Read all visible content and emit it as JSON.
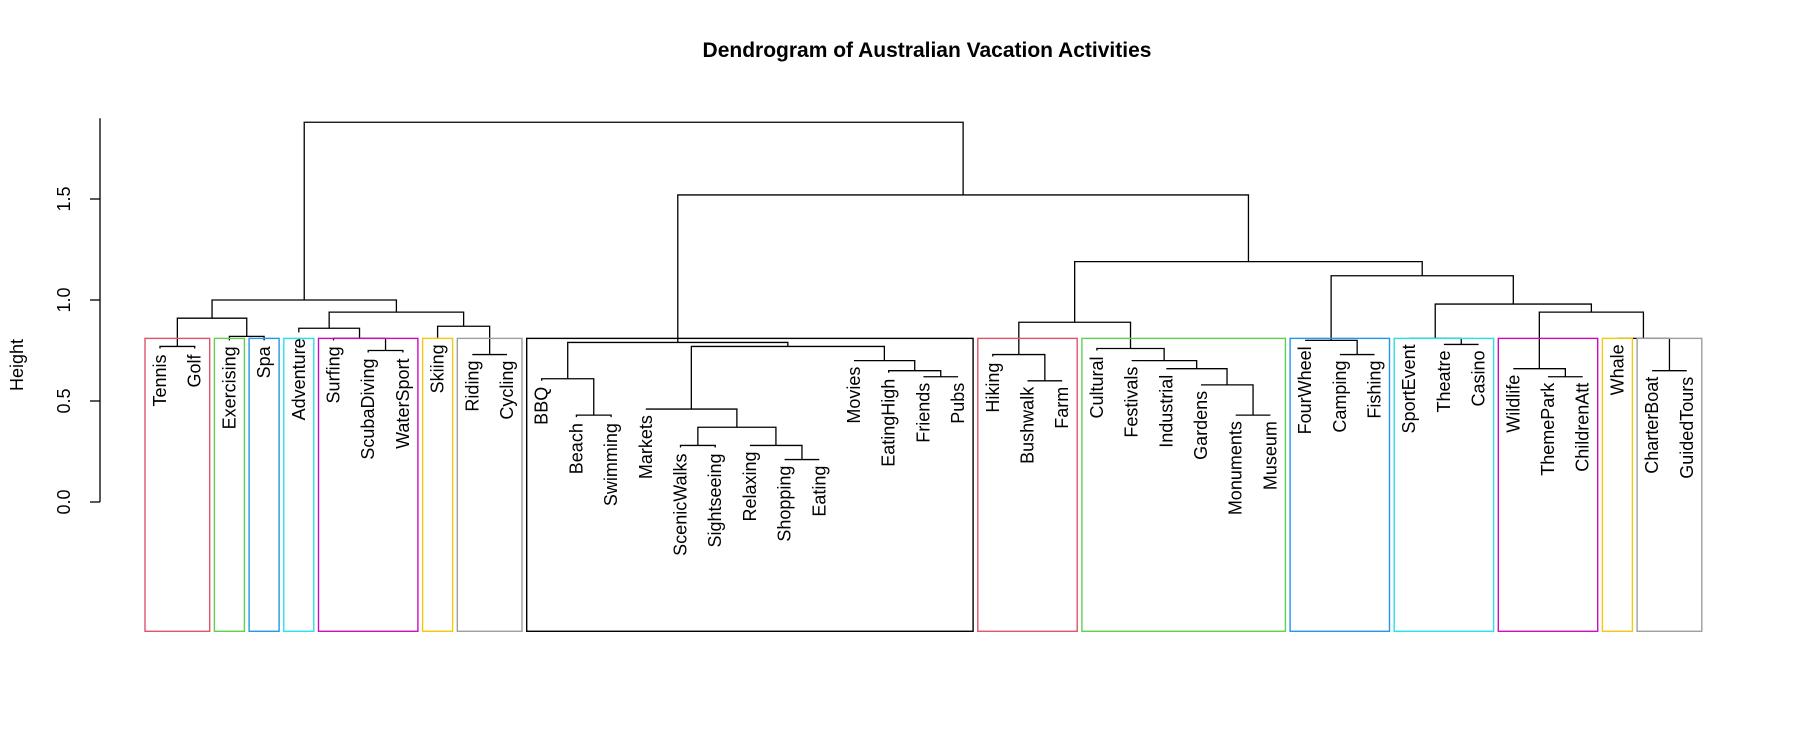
{
  "chart_data": {
    "type": "dendrogram",
    "title": "Dendrogram of Australian Vacation Activities",
    "ylabel": "Height",
    "xlabel": "",
    "ylim": [
      0,
      1.9
    ],
    "yticks": [
      0.0,
      0.5,
      1.0,
      1.5
    ],
    "ytick_labels": [
      "0.0",
      "0.5",
      "1.0",
      "1.5"
    ],
    "rect_bottom_height": -0.64,
    "rect_top_height": 0.81,
    "leaves": [
      "Tennis",
      "Golf",
      "Exercising",
      "Spa",
      "Adventure",
      "Surfing",
      "ScubaDiving",
      "WaterSport",
      "Skiing",
      "Riding",
      "Cycling",
      "BBQ",
      "Beach",
      "Swimming",
      "Markets",
      "ScenicWalks",
      "Sightseeing",
      "Relaxing",
      "Shopping",
      "Eating",
      "Movies",
      "EatingHigh",
      "Friends",
      "Pubs",
      "Hiking",
      "Bushwalk",
      "Farm",
      "Cultural",
      "Festivals",
      "Industrial",
      "Gardens",
      "Monuments",
      "Museum",
      "FourWheel",
      "Camping",
      "Fishing",
      "SportEvent",
      "Theatre",
      "Casino",
      "Wildlife",
      "ThemePark",
      "ChildrenAtt",
      "Whale",
      "CharterBoat",
      "GuidedTours"
    ],
    "leaf_bottoms": [
      0.76,
      0.76,
      0.8,
      0.8,
      0.84,
      0.8,
      0.74,
      0.74,
      0.81,
      0.73,
      0.73,
      0.6,
      0.42,
      0.42,
      0.46,
      0.27,
      0.27,
      0.28,
      0.21,
      0.21,
      0.7,
      0.64,
      0.62,
      0.62,
      0.72,
      0.6,
      0.6,
      0.75,
      0.7,
      0.66,
      0.58,
      0.43,
      0.43,
      0.8,
      0.73,
      0.73,
      0.81,
      0.78,
      0.78,
      0.66,
      0.62,
      0.62,
      0.81,
      0.65,
      0.65
    ],
    "merges": [
      [
        -1,
        -2,
        0.77
      ],
      [
        -3,
        -4,
        0.82
      ],
      [
        1,
        2,
        0.91
      ],
      [
        -7,
        -8,
        0.75
      ],
      [
        -6,
        4,
        0.81
      ],
      [
        -5,
        5,
        0.86
      ],
      [
        -10,
        -11,
        0.73
      ],
      [
        -9,
        7,
        0.87
      ],
      [
        6,
        8,
        0.94
      ],
      [
        3,
        9,
        1.0
      ],
      [
        -13,
        -14,
        0.43
      ],
      [
        -12,
        11,
        0.61
      ],
      [
        -16,
        -17,
        0.28
      ],
      [
        -19,
        -20,
        0.21
      ],
      [
        -18,
        14,
        0.28
      ],
      [
        13,
        15,
        0.37
      ],
      [
        -15,
        16,
        0.46
      ],
      [
        -23,
        -24,
        0.62
      ],
      [
        -22,
        18,
        0.65
      ],
      [
        -21,
        19,
        0.7
      ],
      [
        17,
        20,
        0.77
      ],
      [
        12,
        21,
        0.79
      ],
      [
        -26,
        -27,
        0.6
      ],
      [
        -25,
        23,
        0.73
      ],
      [
        -32,
        -33,
        0.43
      ],
      [
        -31,
        25,
        0.58
      ],
      [
        -30,
        26,
        0.66
      ],
      [
        -29,
        27,
        0.7
      ],
      [
        -28,
        28,
        0.76
      ],
      [
        24,
        29,
        0.89
      ],
      [
        -35,
        -36,
        0.73
      ],
      [
        -34,
        31,
        0.8
      ],
      [
        -38,
        -39,
        0.78
      ],
      [
        -37,
        33,
        0.81
      ],
      [
        -41,
        -42,
        0.62
      ],
      [
        -40,
        35,
        0.66
      ],
      [
        -44,
        -45,
        0.65
      ],
      [
        -43,
        37,
        0.81
      ],
      [
        36,
        38,
        0.94
      ],
      [
        34,
        39,
        0.98
      ],
      [
        32,
        40,
        1.12
      ],
      [
        30,
        41,
        1.19
      ],
      [
        22,
        42,
        1.52
      ],
      [
        10,
        43,
        1.88
      ]
    ],
    "clusters": [
      {
        "first": 0,
        "last": 1,
        "color": "#DF536B"
      },
      {
        "first": 2,
        "last": 2,
        "color": "#61D04F"
      },
      {
        "first": 3,
        "last": 3,
        "color": "#2297E6"
      },
      {
        "first": 4,
        "last": 4,
        "color": "#28E2E5"
      },
      {
        "first": 5,
        "last": 7,
        "color": "#CD0BBC"
      },
      {
        "first": 8,
        "last": 8,
        "color": "#F5C710"
      },
      {
        "first": 9,
        "last": 10,
        "color": "#9E9E9E"
      },
      {
        "first": 11,
        "last": 23,
        "color": "#000000"
      },
      {
        "first": 24,
        "last": 26,
        "color": "#DF536B"
      },
      {
        "first": 27,
        "last": 32,
        "color": "#61D04F"
      },
      {
        "first": 33,
        "last": 35,
        "color": "#2297E6"
      },
      {
        "first": 36,
        "last": 38,
        "color": "#28E2E5"
      },
      {
        "first": 39,
        "last": 41,
        "color": "#CD0BBC"
      },
      {
        "first": 42,
        "last": 42,
        "color": "#F5C710"
      },
      {
        "first": 43,
        "last": 44,
        "color": "#9E9E9E"
      }
    ]
  }
}
